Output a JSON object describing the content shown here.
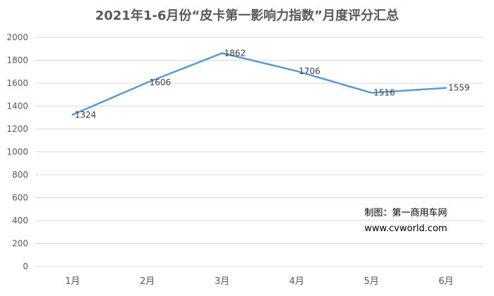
{
  "chart_data": {
    "type": "line",
    "title": "2021年1-6月份“皮卡第一影响力指数”月度评分汇总",
    "categories": [
      "1月",
      "2月",
      "3月",
      "4月",
      "5月",
      "6月"
    ],
    "series": [
      {
        "values": [
          1324,
          1606,
          1862,
          1706,
          1516,
          1559
        ],
        "color": "#5b9bd5"
      }
    ],
    "ylim": [
      0,
      2000
    ],
    "yticks": [
      0,
      200,
      400,
      600,
      800,
      1000,
      1200,
      1400,
      1600,
      1800,
      2000
    ],
    "grid": true,
    "legend": "none",
    "data_labels": true
  },
  "credit": {
    "line1": "制图：第一商用车网",
    "line2": "www.cvworld.com"
  }
}
